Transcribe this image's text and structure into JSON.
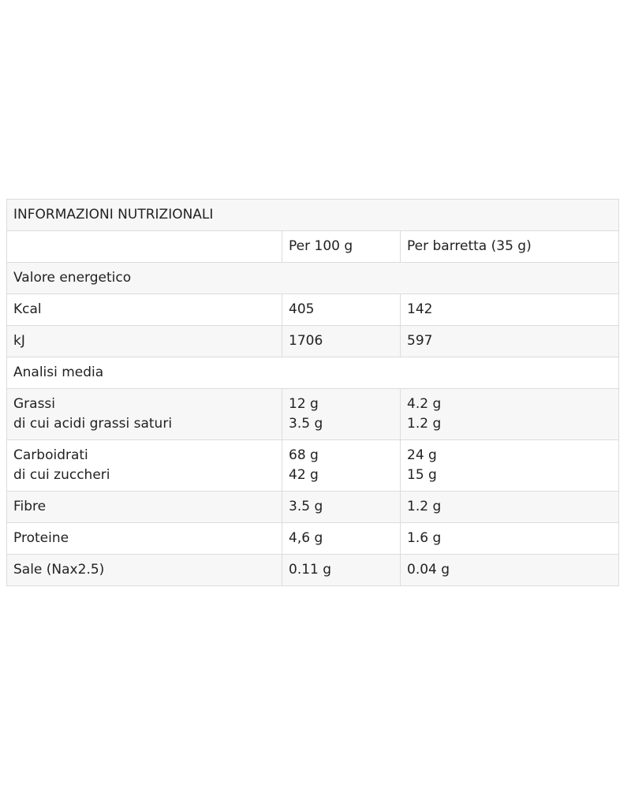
{
  "table": {
    "title": "INFORMAZIONI NUTRIZIONALI",
    "columns": [
      "Per 100 g",
      "Per barretta (35 g)"
    ],
    "rows": [
      {
        "section": "Valore energetico"
      },
      {
        "label": [
          "Kcal"
        ],
        "per_100g": [
          "405"
        ],
        "per_bar": [
          "142"
        ]
      },
      {
        "label": [
          "kJ"
        ],
        "per_100g": [
          "1706"
        ],
        "per_bar": [
          "597"
        ]
      },
      {
        "section": "Analisi media"
      },
      {
        "label": [
          "Grassi",
          "di cui acidi grassi saturi"
        ],
        "per_100g": [
          "12 g",
          "3.5 g"
        ],
        "per_bar": [
          "4.2 g",
          "1.2 g"
        ]
      },
      {
        "label": [
          "Carboidrati",
          "di cui zuccheri"
        ],
        "per_100g": [
          "68 g",
          "42 g"
        ],
        "per_bar": [
          "24 g",
          "15 g"
        ]
      },
      {
        "label": [
          "Fibre"
        ],
        "per_100g": [
          "3.5 g"
        ],
        "per_bar": [
          "1.2 g"
        ]
      },
      {
        "label": [
          "Proteine"
        ],
        "per_100g": [
          "4,6 g"
        ],
        "per_bar": [
          "1.6 g"
        ]
      },
      {
        "label": [
          "Sale (Nax2.5)"
        ],
        "per_100g": [
          "0.11 g"
        ],
        "per_bar": [
          "0.04 g"
        ]
      }
    ]
  }
}
